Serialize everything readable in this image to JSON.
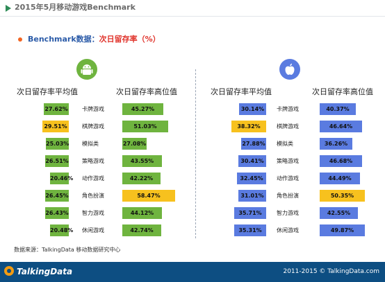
{
  "header": {
    "title": "2015年5月移动游戏Benchmark"
  },
  "subtitle": {
    "prefix": "Benchmark数据：",
    "suffix": "次日留存率（%）"
  },
  "columns": {
    "avg_label": "次日留存率平均值",
    "high_label": "次日留存率高位值"
  },
  "platforms": [
    {
      "name": "android",
      "icon": "android-icon",
      "color": "#6fb43f"
    },
    {
      "name": "ios",
      "icon": "apple-icon",
      "color": "#5a7be0"
    }
  ],
  "categories": [
    "卡牌游戏",
    "棋牌游戏",
    "模拟类",
    "策略游戏",
    "动作游戏",
    "角色扮演",
    "智力游戏",
    "休闲游戏"
  ],
  "chart_data": [
    {
      "type": "bar",
      "platform": "android",
      "categories": [
        "卡牌游戏",
        "棋牌游戏",
        "模拟类",
        "策略游戏",
        "动作游戏",
        "角色扮演",
        "智力游戏",
        "休闲游戏"
      ],
      "series": [
        {
          "name": "次日留存率平均值",
          "values": [
            "27.62%",
            "29.51%",
            "25.03%",
            "26.51%",
            "20.46%",
            "26.45%",
            "26.43%",
            "20.48%"
          ],
          "numeric": [
            27.62,
            29.51,
            25.03,
            26.51,
            20.46,
            26.45,
            26.43,
            20.48
          ],
          "highlight_index": 1
        },
        {
          "name": "次日留存率高位值",
          "values": [
            "45.27%",
            "51.03%",
            "27.08%",
            "43.55%",
            "42.22%",
            "58.47%",
            "44.12%",
            "42.74%"
          ],
          "numeric": [
            45.27,
            51.03,
            27.08,
            43.55,
            42.22,
            58.47,
            44.12,
            42.74
          ],
          "highlight_index": 5
        }
      ]
    },
    {
      "type": "bar",
      "platform": "ios",
      "categories": [
        "卡牌游戏",
        "棋牌游戏",
        "模拟类",
        "策略游戏",
        "动作游戏",
        "角色扮演",
        "智力游戏",
        "休闲游戏"
      ],
      "series": [
        {
          "name": "次日留存率平均值",
          "values": [
            "30.14%",
            "38.32%",
            "27.88%",
            "30.41%",
            "32.45%",
            "31.01%",
            "35.71%",
            "35.31%"
          ],
          "numeric": [
            30.14,
            38.32,
            27.88,
            30.41,
            32.45,
            31.01,
            35.71,
            35.31
          ],
          "highlight_index": 1
        },
        {
          "name": "次日留存率高位值",
          "values": [
            "40.37%",
            "46.64%",
            "36.26%",
            "46.68%",
            "44.49%",
            "50.35%",
            "42.55%",
            "49.87%"
          ],
          "numeric": [
            40.37,
            46.64,
            36.26,
            46.68,
            44.49,
            50.35,
            42.55,
            49.87
          ],
          "highlight_index": 5
        }
      ]
    }
  ],
  "colors": {
    "android_bar": "#6fb43f",
    "ios_bar": "#5a7be0",
    "highlight_bar": "#f7c11e",
    "footer": "#0d4e82"
  },
  "source": "数据来源：TalkingData 移动数据研究中心",
  "footer": {
    "logo": "TalkingData",
    "copyright": "2011-2015 © TalkingData.com"
  }
}
